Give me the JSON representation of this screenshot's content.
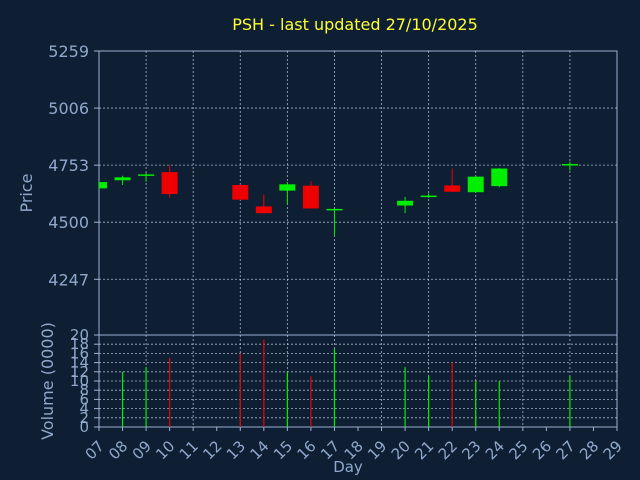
{
  "chart_data": [
    {
      "type": "candlestick",
      "title": "PSH - last updated 27/10/2025",
      "xlabel": "Day",
      "ylabel": "Price",
      "ylim": [
        4000,
        5259
      ],
      "yticks": [
        4247,
        4500,
        4753,
        5006,
        5259
      ],
      "grid": true,
      "categories": [
        "07",
        "08",
        "09",
        "10",
        "11",
        "12",
        "13",
        "14",
        "15",
        "16",
        "17",
        "18",
        "19",
        "20",
        "21",
        "22",
        "23",
        "24",
        "25",
        "26",
        "27",
        "28",
        "29"
      ],
      "candles": [
        {
          "day": "07",
          "open": 4650,
          "high": 4685,
          "low": 4648,
          "close": 4678
        },
        {
          "day": "08",
          "open": 4686,
          "high": 4706,
          "low": 4665,
          "close": 4699
        },
        {
          "day": "09",
          "open": 4708,
          "high": 4718,
          "low": 4680,
          "close": 4712
        },
        {
          "day": "10",
          "open": 4722,
          "high": 4752,
          "low": 4610,
          "close": 4625
        },
        {
          "day": "13",
          "open": 4665,
          "high": 4668,
          "low": 4598,
          "close": 4600
        },
        {
          "day": "14",
          "open": 4570,
          "high": 4622,
          "low": 4540,
          "close": 4540
        },
        {
          "day": "15",
          "open": 4640,
          "high": 4678,
          "low": 4580,
          "close": 4668
        },
        {
          "day": "16",
          "open": 4662,
          "high": 4682,
          "low": 4560,
          "close": 4561
        },
        {
          "day": "17",
          "open": 4555,
          "high": 4560,
          "low": 4440,
          "close": 4559
        },
        {
          "day": "20",
          "open": 4574,
          "high": 4612,
          "low": 4540,
          "close": 4595
        },
        {
          "day": "21",
          "open": 4615,
          "high": 4628,
          "low": 4608,
          "close": 4618
        },
        {
          "day": "22",
          "open": 4663,
          "high": 4738,
          "low": 4633,
          "close": 4635
        },
        {
          "day": "23",
          "open": 4633,
          "high": 4705,
          "low": 4630,
          "close": 4702
        },
        {
          "day": "24",
          "open": 4660,
          "high": 4740,
          "low": 4655,
          "close": 4738
        },
        {
          "day": "27",
          "open": 4755,
          "high": 4768,
          "low": 4730,
          "close": 4758
        }
      ]
    },
    {
      "type": "bar",
      "ylabel": "Volume (0000)",
      "ylim": [
        0,
        20
      ],
      "yticks": [
        0,
        2,
        4,
        6,
        8,
        10,
        12,
        14,
        16,
        18,
        20
      ],
      "categories": [
        "07",
        "08",
        "09",
        "10",
        "13",
        "14",
        "15",
        "16",
        "17",
        "20",
        "21",
        "22",
        "23",
        "24",
        "27"
      ],
      "values": [
        0,
        12,
        13,
        15,
        16,
        19,
        12,
        11,
        17,
        13,
        11,
        14,
        10,
        10,
        11
      ],
      "direction": [
        "up",
        "up",
        "up",
        "down",
        "down",
        "down",
        "up",
        "down",
        "up",
        "up",
        "up",
        "down",
        "up",
        "up",
        "up"
      ]
    }
  ],
  "colors": {
    "background": "#0f1f33",
    "axis": "#9ab0d6",
    "grid": "#d0d8e8",
    "text": "#8fa8cc",
    "title": "#ffff33",
    "up": "#00ee00",
    "down": "#ee0000"
  }
}
